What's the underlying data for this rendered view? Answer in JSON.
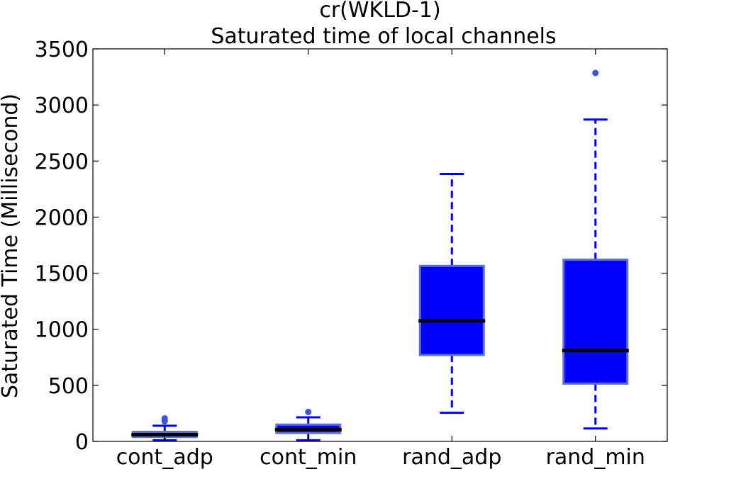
{
  "chart_data": {
    "type": "box",
    "title": [
      "cr(WKLD-1)",
      "Saturated time of local channels"
    ],
    "xlabel": "",
    "ylabel": "Saturated Time (Millisecond)",
    "ylim": [
      0,
      3500
    ],
    "yticks": [
      0,
      500,
      1000,
      1500,
      2000,
      2500,
      3000,
      3500
    ],
    "categories": [
      "cont_adp",
      "cont_min",
      "rand_adp",
      "rand_min"
    ],
    "boxes": [
      {
        "category": "cont_adp",
        "whisker_low": 10,
        "q1": 40,
        "median": 60,
        "q3": 85,
        "whisker_high": 140,
        "outliers": [
          180,
          205
        ]
      },
      {
        "category": "cont_min",
        "whisker_low": 10,
        "q1": 75,
        "median": 105,
        "q3": 150,
        "whisker_high": 215,
        "outliers": [
          262
        ]
      },
      {
        "category": "rand_adp",
        "whisker_low": 255,
        "q1": 770,
        "median": 1075,
        "q3": 1565,
        "whisker_high": 2385,
        "outliers": []
      },
      {
        "category": "rand_min",
        "whisker_low": 115,
        "q1": 515,
        "median": 810,
        "q3": 1620,
        "whisker_high": 2870,
        "outliers": [
          3285
        ]
      }
    ],
    "grid": false,
    "colors": {
      "box_fill": "#0000ff",
      "box_edge": "#5b6fd4",
      "whisker": "#0000ff",
      "median": "#000000",
      "outlier": "#3a57d6"
    }
  }
}
